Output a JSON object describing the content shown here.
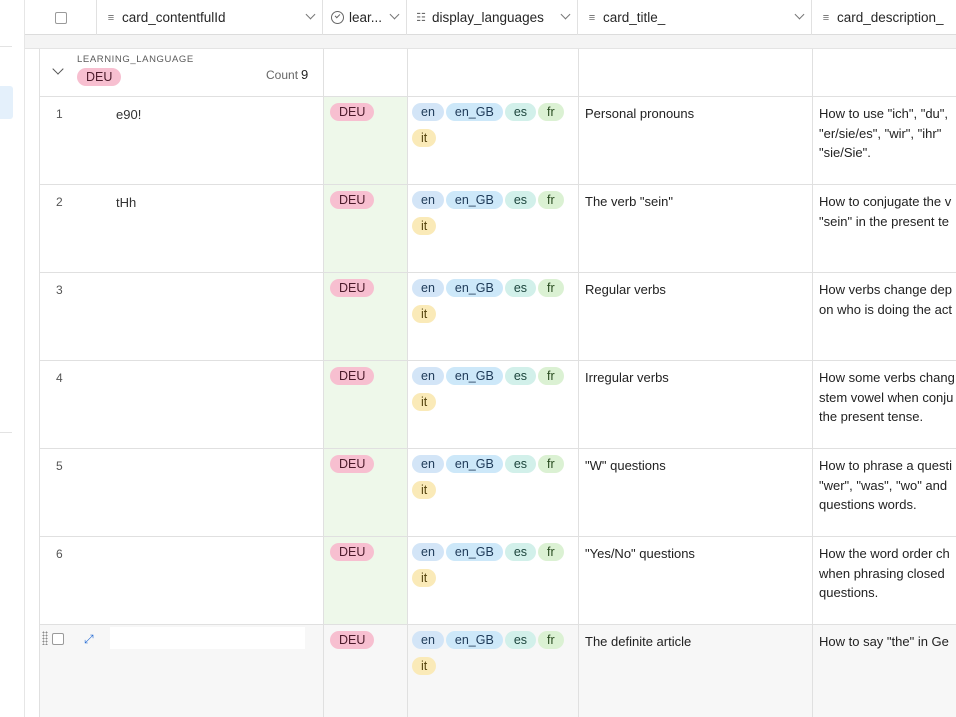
{
  "columns": {
    "content_id": "card_contentfulId",
    "learning_language": "lear...",
    "display_languages": "display_languages",
    "card_title": "card_title_",
    "card_description": "card_description_"
  },
  "group": {
    "label": "LEARNING_LANGUAGE",
    "value": "DEU",
    "count_label": "Count",
    "count": "9"
  },
  "rows": [
    {
      "num": "1",
      "content_id": "e90!",
      "learning_language": "DEU",
      "langs": [
        "en",
        "en_GB",
        "es",
        "fr",
        "it"
      ],
      "title": "Personal pronouns",
      "desc_lines": [
        "How to use \"ich\", \"du\",",
        "\"er/sie/es\", \"wir\", \"ihr\"",
        "\"sie/Sie\"."
      ]
    },
    {
      "num": "2",
      "content_id": "tHh",
      "learning_language": "DEU",
      "langs": [
        "en",
        "en_GB",
        "es",
        "fr",
        "it"
      ],
      "title": "The verb \"sein\"",
      "desc_lines": [
        "How to conjugate the v",
        "\"sein\" in the present te"
      ]
    },
    {
      "num": "3",
      "content_id": "",
      "learning_language": "DEU",
      "langs": [
        "en",
        "en_GB",
        "es",
        "fr",
        "it"
      ],
      "title": "Regular verbs",
      "desc_lines": [
        "How verbs change dep",
        "on who is doing the act"
      ]
    },
    {
      "num": "4",
      "content_id": "",
      "learning_language": "DEU",
      "langs": [
        "en",
        "en_GB",
        "es",
        "fr",
        "it"
      ],
      "title": "Irregular verbs",
      "desc_lines": [
        "How some verbs chang",
        "stem vowel when conju",
        "the present tense."
      ]
    },
    {
      "num": "5",
      "content_id": "",
      "learning_language": "DEU",
      "langs": [
        "en",
        "en_GB",
        "es",
        "fr",
        "it"
      ],
      "title": "\"W\" questions",
      "desc_lines": [
        "How to phrase a questi",
        "\"wer\", \"was\", \"wo\" and",
        "questions words."
      ]
    },
    {
      "num": "6",
      "content_id": "",
      "learning_language": "DEU",
      "langs": [
        "en",
        "en_GB",
        "es",
        "fr",
        "it"
      ],
      "title": "\"Yes/No\" questions",
      "desc_lines": [
        "How the word order ch",
        "when phrasing closed",
        "questions."
      ]
    },
    {
      "num": "",
      "content_id": "",
      "learning_language": "DEU",
      "langs": [
        "en",
        "en_GB",
        "es",
        "fr",
        "it"
      ],
      "title": "The definite article",
      "desc_lines": [
        "How to say \"the\" in Ge"
      ]
    }
  ]
}
